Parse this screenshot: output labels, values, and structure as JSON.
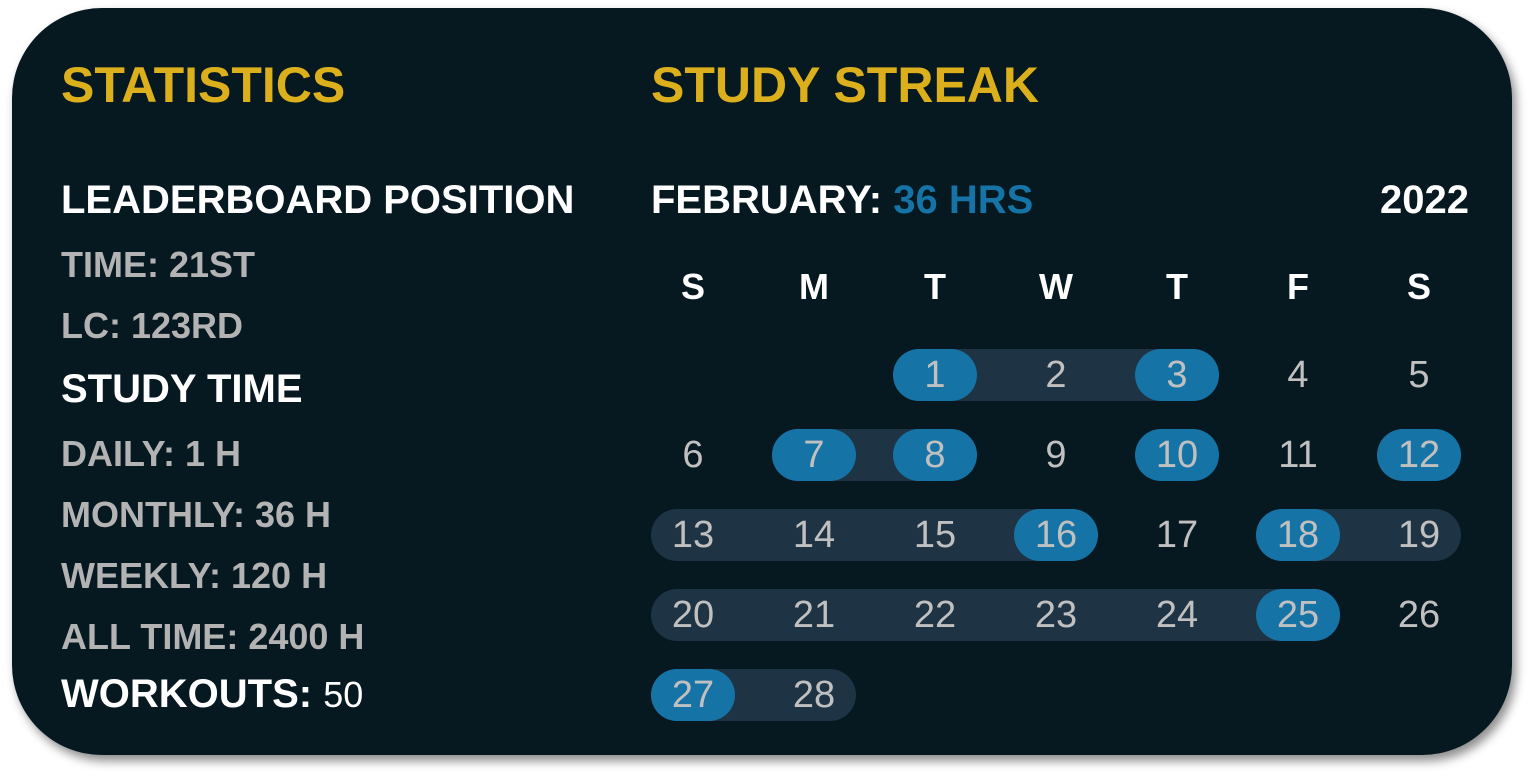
{
  "statistics": {
    "title": "STATISTICS",
    "leaderboard_heading": "LEADERBOARD POSITION",
    "time": "TIME: 21ST",
    "lc": "LC: 123RD",
    "study_time_heading": "STUDY TIME",
    "daily": "DAILY: 1 H",
    "monthly": "MONTHLY: 36 H",
    "weekly": "WEEKLY: 120 H",
    "all_time": "ALL TIME: 2400 H",
    "workouts_label": "WORKOUTS:",
    "workouts_value": "50"
  },
  "streak": {
    "title": "STUDY STREAK",
    "month_label": "FEBRUARY:",
    "month_hours": "36 HRS",
    "year": "2022",
    "weekdays": [
      "S",
      "M",
      "T",
      "W",
      "T",
      "F",
      "S"
    ],
    "first_weekday_index": 2,
    "days_in_month": 28,
    "studied_days": [
      1,
      3,
      7,
      8,
      10,
      12,
      16,
      18,
      25,
      27
    ],
    "streak_ranges": [
      [
        1,
        3
      ],
      [
        7,
        8
      ],
      [
        13,
        16
      ],
      [
        18,
        19
      ],
      [
        20,
        25
      ],
      [
        27,
        28
      ]
    ],
    "colors": {
      "title": "#dcb01c",
      "hours": "#1673a6",
      "studied": "#1673a6",
      "streak_band": "#1e3344",
      "background": "#061820"
    }
  }
}
